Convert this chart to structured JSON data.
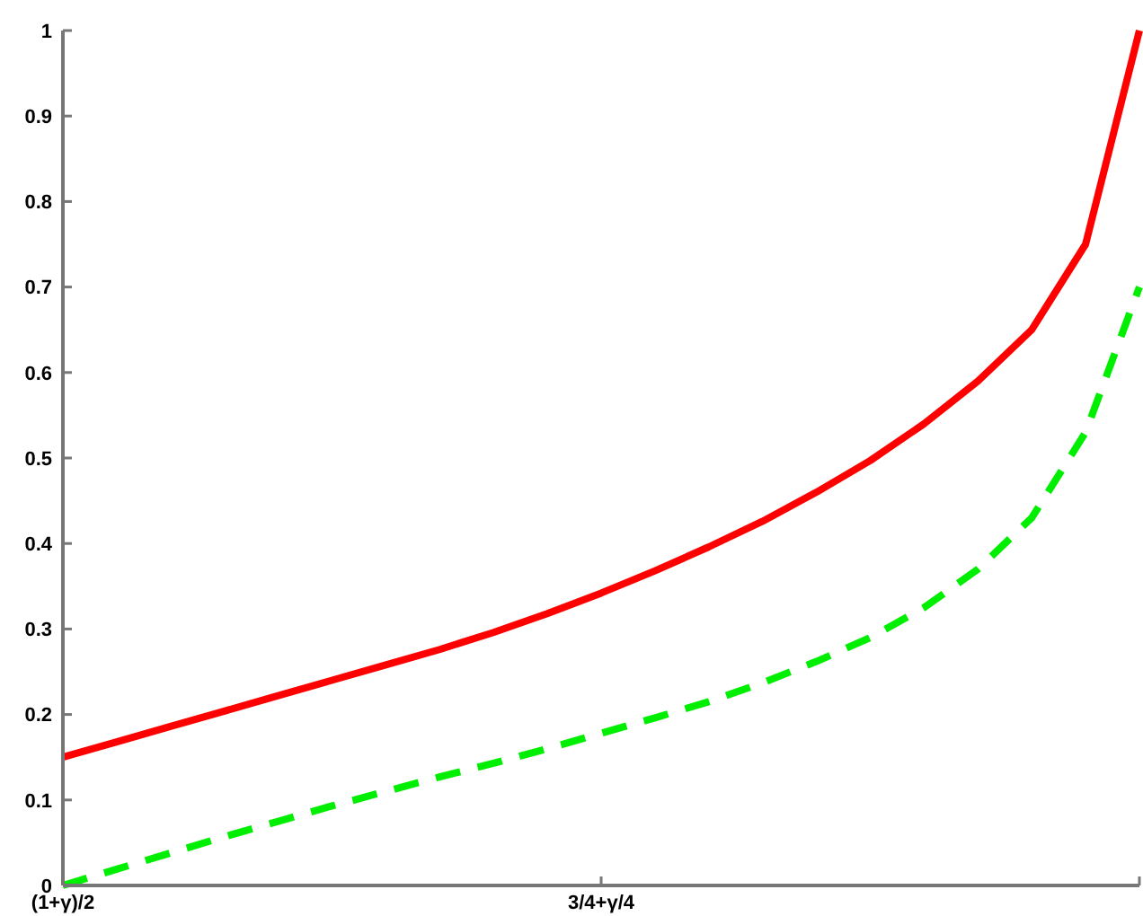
{
  "chart_data": {
    "type": "line",
    "ylim": [
      0,
      1
    ],
    "categories": [
      "(1+γ)/2",
      null,
      null,
      null,
      null,
      null,
      null,
      null,
      null,
      null,
      "3/4+γ/4",
      null,
      null,
      null,
      null,
      null,
      null,
      null,
      null,
      null,
      null
    ],
    "yticks": [
      0,
      0.1,
      0.2,
      0.3,
      0.4,
      0.5,
      0.6,
      0.7,
      0.8,
      0.9,
      1
    ],
    "series": [
      {
        "color": "#ff0000",
        "line_style": "solid",
        "values": [
          0.15,
          0.168,
          0.186,
          0.204,
          0.222,
          0.24,
          0.258,
          0.276,
          0.296,
          0.318,
          0.342,
          0.368,
          0.396,
          0.426,
          0.46,
          0.497,
          0.54,
          0.59,
          0.65,
          0.75,
          1
        ]
      },
      {
        "color": "#00ee00",
        "line_style": "dashed",
        "values": [
          0,
          0.019,
          0.038,
          0.057,
          0.075,
          0.093,
          0.11,
          0.127,
          0.143,
          0.16,
          0.178,
          0.196,
          0.215,
          0.237,
          0.262,
          0.29,
          0.325,
          0.37,
          0.43,
          0.53,
          0.7
        ]
      }
    ]
  }
}
